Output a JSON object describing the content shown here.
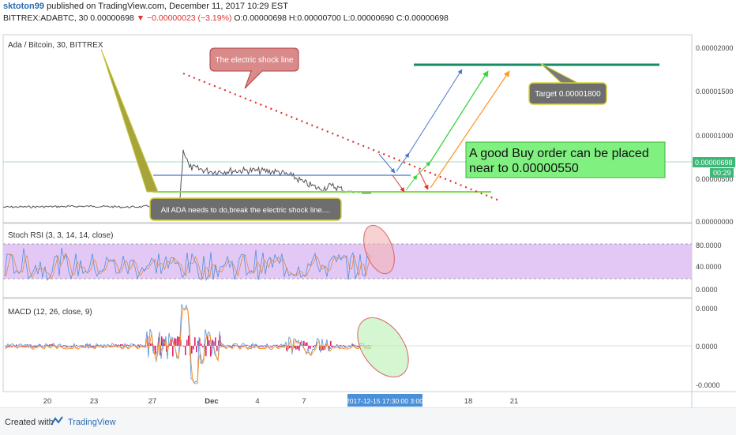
{
  "header": {
    "author": "sktoton99",
    "published_text": "published on TradingView.com, December 11, 2017 10:29 EST",
    "symbol": "BITTREX:ADABTC, 30",
    "last": "0.00000698",
    "change": "−0.00000023 (−3.19%)",
    "ohlc": "O:0.00000698 H:0.00000700 L:0.00000690 C:0.00000698"
  },
  "footer": {
    "created_with": "Created with",
    "brand": "TradingView"
  },
  "colors": {
    "price_line": "#555555",
    "blue_line": "#4a78c8",
    "green_line": "#7fe04a",
    "target_line": "#1a8a66",
    "red_dots": "#e03030",
    "rsi_band": "#e3c8f5",
    "macd_hist": "#e0226a",
    "macd_line": "#6699dd",
    "signal_line": "#ff8c1a"
  },
  "chart_data": [
    {
      "type": "line",
      "title": "Ada / Bitcoin, 30, BITTREX",
      "x_labels": [
        "20",
        "23",
        "27",
        "Dec",
        "4",
        "7",
        "18",
        "21"
      ],
      "y_ticks": [
        "0.00002000",
        "0.00001500",
        "0.00001000",
        "0.00000500",
        "0.00000000"
      ],
      "ylim": [
        0,
        2.1e-05
      ],
      "series": [
        {
          "x": [
            "Nov 17",
            "Nov 20",
            "Nov 23",
            "Nov 25",
            "Nov 26",
            "Nov 27",
            "Nov 28",
            "Nov 28",
            "Nov 28",
            "Nov 29",
            "Dec 1",
            "Dec 3",
            "Dec 4",
            "Dec 5",
            "Dec 6",
            "Dec 7",
            "Dec 8",
            "Dec 9",
            "Dec 10",
            "Dec 11"
          ],
          "y": [
            3.9e-06,
            4e-06,
            4.1e-06,
            3.9e-06,
            4e-06,
            4.2e-06,
            5.5e-06,
            5.9e-06,
            1.7e-05,
            1.3e-05,
            1.2e-05,
            1.23e-05,
            1.22e-05,
            1.2e-05,
            1.1e-05,
            9.5e-06,
            8e-06,
            8.8e-06,
            7.5e-06,
            7e-06
          ]
        }
      ],
      "current_price": "0.00000698",
      "countdown": "00:29",
      "annotations": {
        "shock_line_label": "The electric shock line",
        "break_note": "All ADA needs to do,break the electric shock line....",
        "buy_note_line1": "A good Buy order can be placed",
        "buy_note_line2": "near to 0.00000550",
        "target_label": "Target 0.00001800"
      }
    },
    {
      "type": "line",
      "title": "Stoch RSI (3, 3, 14, 14, close)",
      "y_ticks": [
        "80.0000",
        "40.0000",
        "0.0000"
      ],
      "ylim": [
        0,
        100
      ],
      "band": [
        20,
        80
      ]
    },
    {
      "type": "line",
      "title": "MACD (12, 26, close, 9)",
      "y_ticks": [
        "0.0000",
        "0.0000",
        "-0.0000"
      ],
      "cursor_label": "2017-12-15 17:30:00 3:00"
    }
  ]
}
